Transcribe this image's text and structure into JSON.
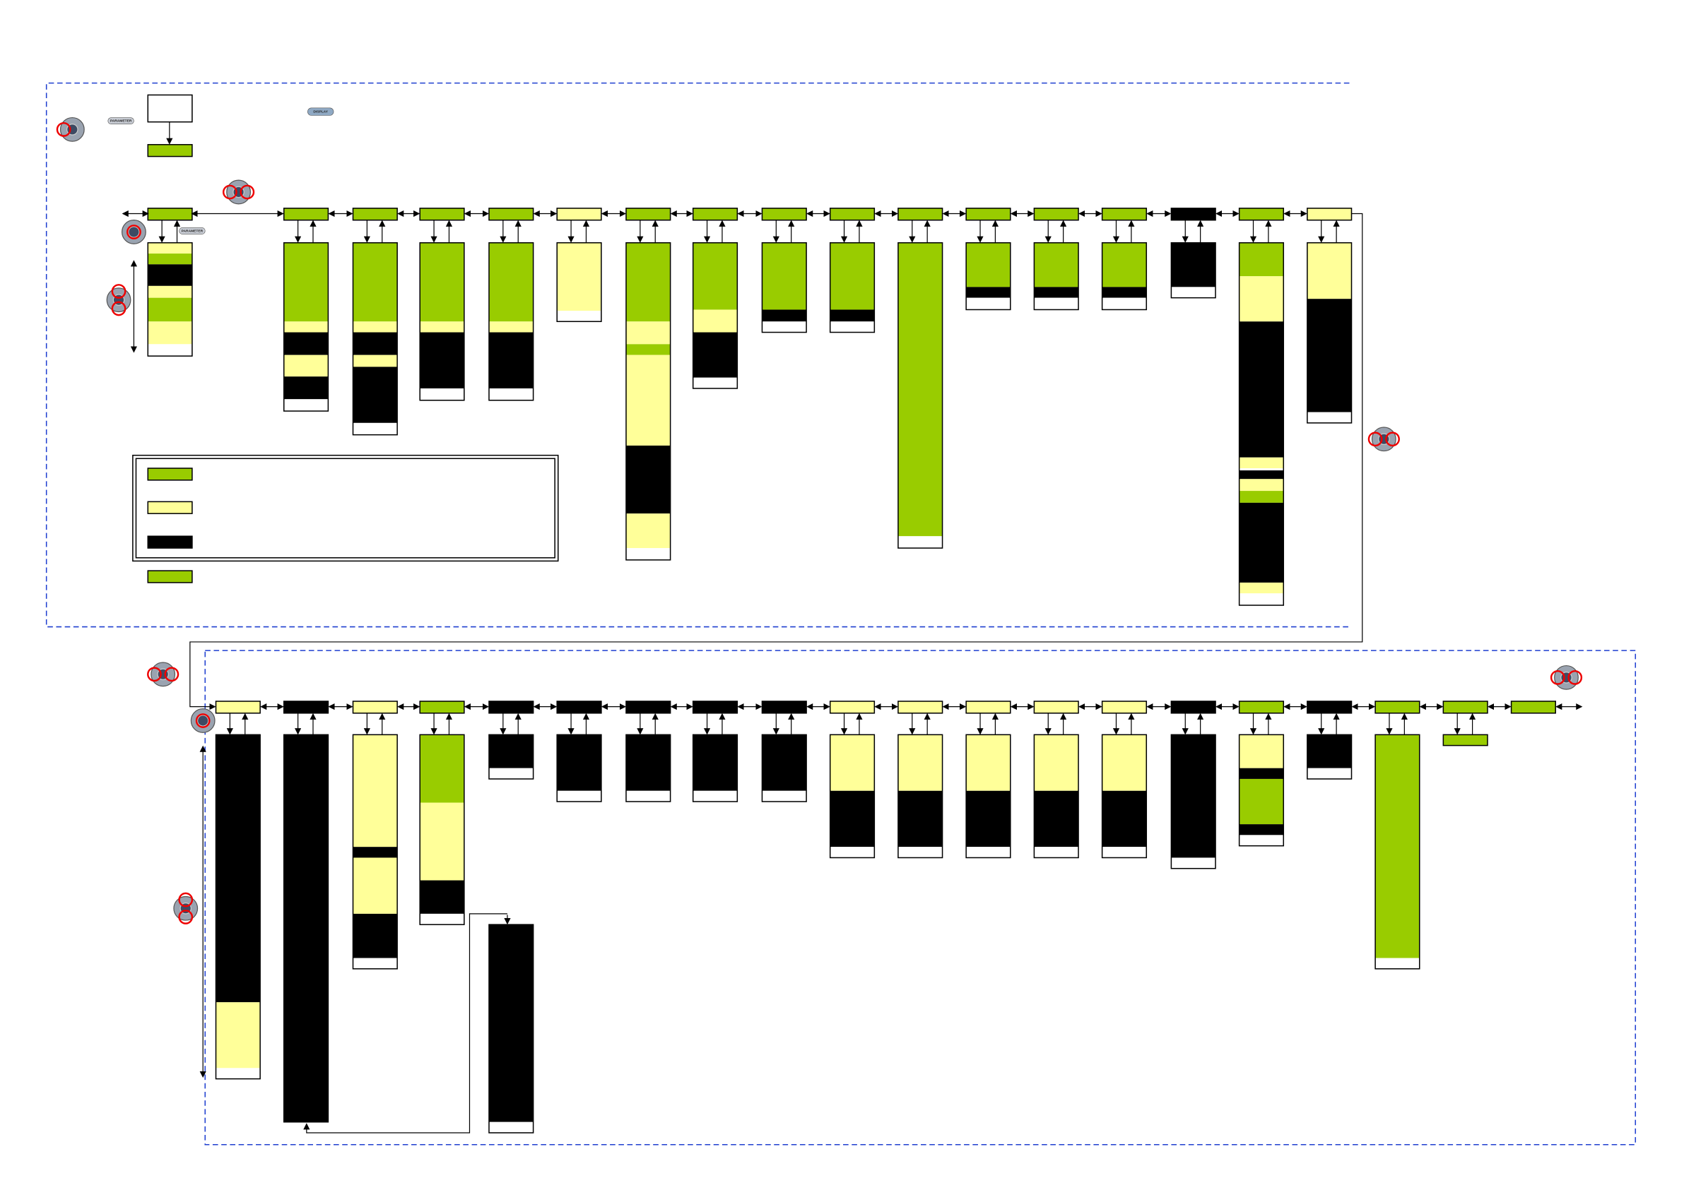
{
  "buttons": {
    "parameter": "PARAMETER",
    "display": "DISPLAY"
  }
}
